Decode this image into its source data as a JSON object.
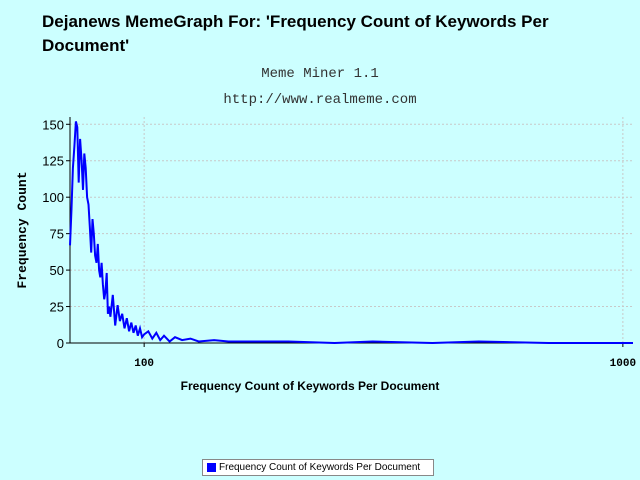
{
  "title": "Dejanews MemeGraph For: 'Frequency Count of Keywords Per Document'",
  "subtitle_1": "Meme Miner 1.1",
  "subtitle_2": "http://www.realmeme.com",
  "colors": {
    "background": "#ccffff",
    "plot_background": "#ffffff",
    "series": "#0000ff"
  },
  "legend": {
    "label": "Frequency Count of Keywords Per Document",
    "placement": "bottom-center"
  },
  "chart_data": {
    "type": "line",
    "xlabel": "Frequency Count of Keywords Per Document",
    "ylabel": "Frequency Count",
    "x_scale": "log",
    "xlim": [
      70,
      1050
    ],
    "ylim": [
      0,
      155
    ],
    "x_ticks": [
      100,
      1000
    ],
    "y_ticks": [
      0,
      25,
      50,
      75,
      100,
      125,
      150
    ],
    "grid": true,
    "series": [
      {
        "name": "Frequency Count of Keywords Per Document",
        "x": [
          70,
          70.5,
          71,
          71.5,
          72,
          72.5,
          73,
          73.5,
          74,
          74.5,
          75,
          75.5,
          76,
          76.5,
          77,
          77.5,
          78,
          78.5,
          79,
          79.5,
          80,
          80.5,
          81,
          81.5,
          82,
          82.5,
          83,
          83.5,
          84,
          84.5,
          85,
          86,
          87,
          88,
          89,
          90,
          91,
          92,
          93,
          94,
          95,
          96,
          97,
          98,
          99,
          100,
          102,
          104,
          106,
          108,
          110,
          113,
          116,
          120,
          125,
          130,
          140,
          150,
          170,
          200,
          250,
          300,
          400,
          500,
          700,
          1000,
          1050
        ],
        "values": [
          67,
          92,
          120,
          135,
          152,
          148,
          110,
          140,
          125,
          105,
          130,
          120,
          100,
          95,
          80,
          62,
          85,
          75,
          60,
          55,
          68,
          50,
          45,
          55,
          40,
          30,
          35,
          48,
          20,
          25,
          18,
          33,
          12,
          26,
          15,
          20,
          10,
          17,
          8,
          14,
          7,
          12,
          5,
          10,
          4,
          6,
          8,
          3,
          7,
          2,
          5,
          1,
          4,
          2,
          3,
          1,
          2,
          1,
          1,
          1,
          0,
          1,
          0,
          1,
          0,
          0,
          0
        ]
      }
    ]
  }
}
